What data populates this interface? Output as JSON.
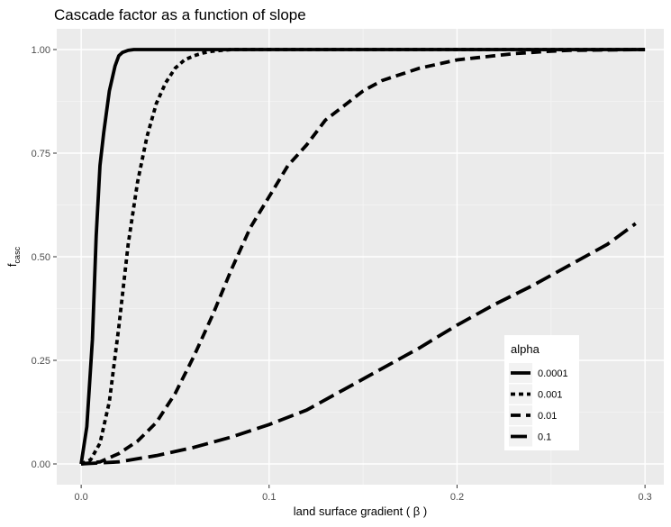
{
  "chart_data": {
    "type": "line",
    "title": "Cascade factor as a function of slope",
    "xlabel": "land surface gradient ( β )",
    "ylabel_main": "f",
    "ylabel_sub": "casc",
    "xlim": [
      -0.013,
      0.31
    ],
    "ylim": [
      -0.05,
      1.05
    ],
    "x_ticks": [
      0.0,
      0.1,
      0.2,
      0.3
    ],
    "x_tick_labels": [
      "0.0",
      "0.1",
      "0.2",
      "0.3"
    ],
    "y_ticks": [
      0.0,
      0.25,
      0.5,
      0.75,
      1.0
    ],
    "y_tick_labels": [
      "0.00",
      "0.25",
      "0.50",
      "0.75",
      "1.00"
    ],
    "grid": true,
    "legend": {
      "title": "alpha",
      "placement": "inside-bottom-right"
    },
    "series": [
      {
        "name": "0.0001",
        "dash": "solid",
        "x": [
          0.0,
          0.003,
          0.006,
          0.008,
          0.01,
          0.012,
          0.015,
          0.018,
          0.02,
          0.022,
          0.025,
          0.028,
          0.03,
          0.3
        ],
        "y": [
          0.0,
          0.09,
          0.3,
          0.55,
          0.72,
          0.8,
          0.9,
          0.96,
          0.985,
          0.993,
          0.998,
          1.0,
          1.0,
          1.0
        ]
      },
      {
        "name": "0.001",
        "dash": "dotted",
        "x": [
          0.0,
          0.005,
          0.01,
          0.015,
          0.02,
          0.025,
          0.03,
          0.035,
          0.04,
          0.045,
          0.05,
          0.055,
          0.06,
          0.065,
          0.07,
          0.075,
          0.08,
          0.3
        ],
        "y": [
          0.0,
          0.01,
          0.05,
          0.15,
          0.33,
          0.53,
          0.68,
          0.79,
          0.87,
          0.92,
          0.955,
          0.975,
          0.985,
          0.992,
          0.996,
          0.998,
          1.0,
          1.0
        ]
      },
      {
        "name": "0.01",
        "dash": "dashed",
        "x": [
          0.0,
          0.01,
          0.02,
          0.03,
          0.04,
          0.05,
          0.06,
          0.07,
          0.08,
          0.09,
          0.1,
          0.11,
          0.12,
          0.13,
          0.14,
          0.15,
          0.16,
          0.17,
          0.18,
          0.19,
          0.2,
          0.21,
          0.22,
          0.23,
          0.24,
          0.25,
          0.26,
          0.3
        ],
        "y": [
          0.0,
          0.005,
          0.025,
          0.055,
          0.1,
          0.17,
          0.26,
          0.36,
          0.47,
          0.57,
          0.645,
          0.72,
          0.77,
          0.83,
          0.865,
          0.9,
          0.925,
          0.94,
          0.955,
          0.965,
          0.975,
          0.98,
          0.985,
          0.99,
          0.993,
          0.996,
          0.998,
          1.0
        ]
      },
      {
        "name": "0.1",
        "dash": "longdash",
        "x": [
          0.0,
          0.02,
          0.04,
          0.06,
          0.08,
          0.1,
          0.12,
          0.14,
          0.16,
          0.18,
          0.2,
          0.22,
          0.24,
          0.26,
          0.28,
          0.295
        ],
        "y": [
          0.0,
          0.005,
          0.02,
          0.04,
          0.065,
          0.095,
          0.13,
          0.18,
          0.23,
          0.28,
          0.335,
          0.385,
          0.43,
          0.48,
          0.53,
          0.58
        ]
      }
    ]
  }
}
